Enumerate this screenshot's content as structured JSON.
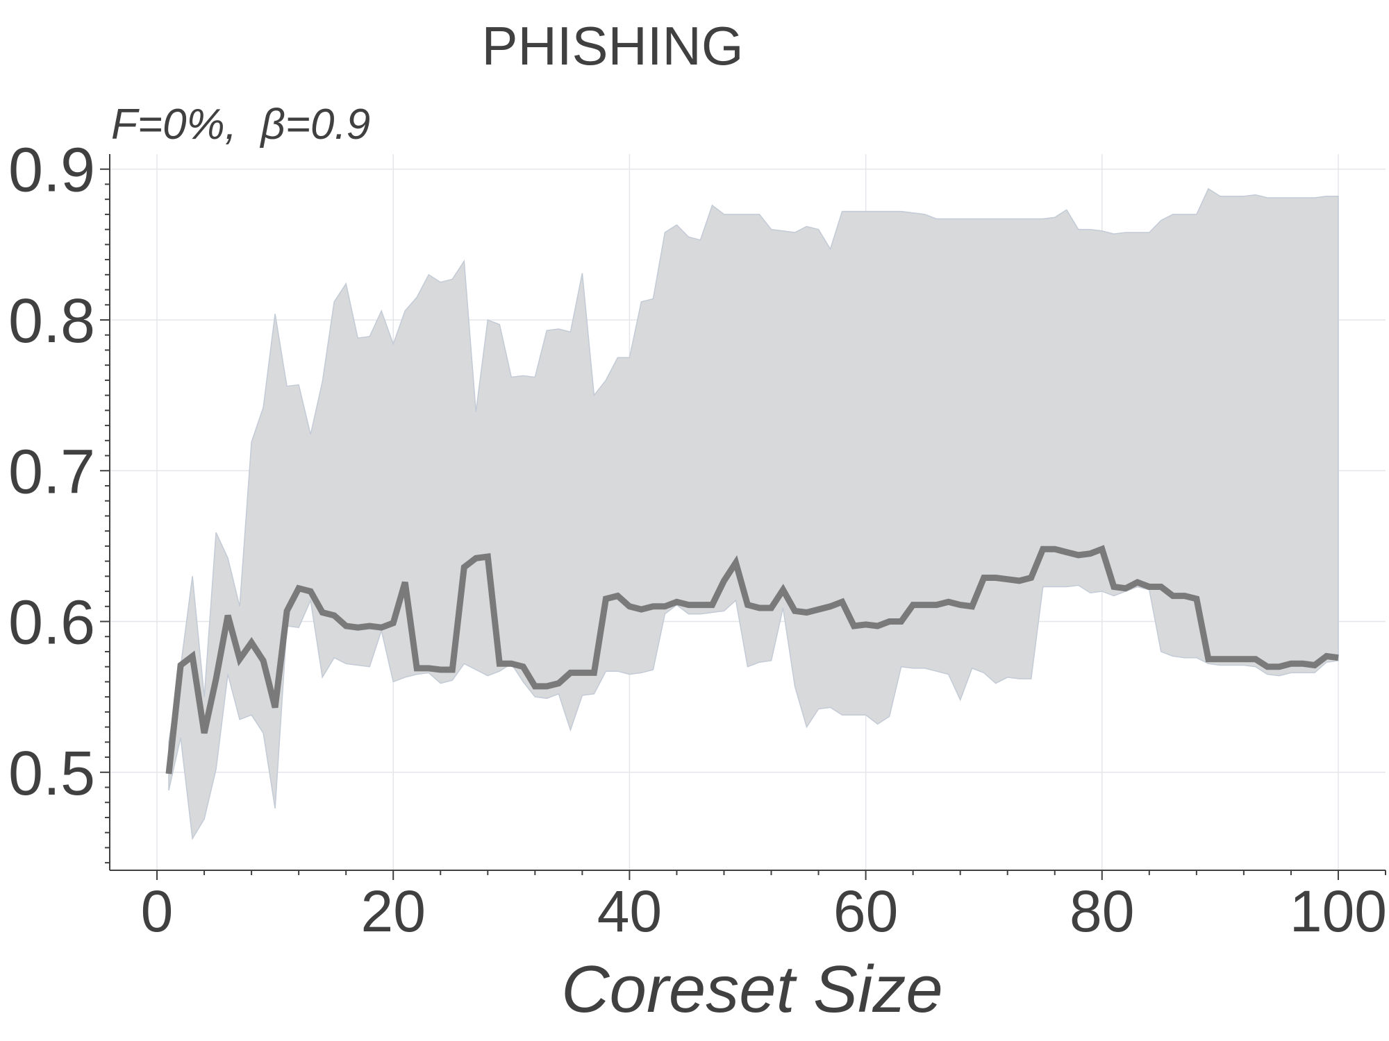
{
  "chart_data": {
    "type": "line",
    "title": "PHISHING",
    "subtitle": "F=0%,  β=0.9",
    "xlabel": "Coreset Size",
    "ylabel": "",
    "xlim": [
      -4,
      104
    ],
    "ylim": [
      0.435,
      0.91
    ],
    "xticks": [
      0,
      20,
      40,
      60,
      80,
      100
    ],
    "xtick_labels": [
      "0",
      "20",
      "40",
      "60",
      "80",
      "100"
    ],
    "yticks": [
      0.5,
      0.6,
      0.7,
      0.8,
      0.9
    ],
    "ytick_labels": [
      "0.5",
      "0.6",
      "0.7",
      "0.8",
      "0.9"
    ],
    "grid": true,
    "colors": {
      "line": "#7a7a7a",
      "band": "#d8d9db",
      "band_edge": "#c3cbd6"
    },
    "x": [
      1,
      2,
      3,
      4,
      5,
      6,
      7,
      8,
      9,
      10,
      11,
      12,
      13,
      14,
      15,
      16,
      17,
      18,
      19,
      20,
      21,
      22,
      23,
      24,
      25,
      26,
      27,
      28,
      29,
      30,
      31,
      32,
      33,
      34,
      35,
      36,
      37,
      38,
      39,
      40,
      41,
      42,
      43,
      44,
      45,
      46,
      47,
      48,
      49,
      50,
      51,
      52,
      53,
      54,
      55,
      56,
      57,
      58,
      59,
      60,
      61,
      62,
      63,
      64,
      65,
      66,
      67,
      68,
      69,
      70,
      71,
      72,
      73,
      74,
      75,
      76,
      77,
      78,
      79,
      80,
      81,
      82,
      83,
      84,
      85,
      86,
      87,
      88,
      89,
      90,
      91,
      92,
      93,
      94,
      95,
      96,
      97,
      98,
      99,
      100
    ],
    "series": [
      {
        "values": [
          0.499,
          0.571,
          0.577,
          0.526,
          0.562,
          0.604,
          0.575,
          0.586,
          0.574,
          0.543,
          0.607,
          0.622,
          0.62,
          0.606,
          0.604,
          0.597,
          0.596,
          0.597,
          0.596,
          0.599,
          0.626,
          0.569,
          0.569,
          0.568,
          0.568,
          0.636,
          0.642,
          0.643,
          0.572,
          0.572,
          0.57,
          0.557,
          0.557,
          0.559,
          0.566,
          0.566,
          0.566,
          0.615,
          0.617,
          0.61,
          0.608,
          0.61,
          0.61,
          0.613,
          0.611,
          0.611,
          0.611,
          0.627,
          0.639,
          0.611,
          0.609,
          0.609,
          0.621,
          0.607,
          0.606,
          0.608,
          0.61,
          0.613,
          0.597,
          0.598,
          0.597,
          0.6,
          0.6,
          0.611,
          0.611,
          0.611,
          0.613,
          0.611,
          0.61,
          0.629,
          0.629,
          0.628,
          0.627,
          0.629,
          0.648,
          0.648,
          0.646,
          0.644,
          0.645,
          0.648,
          0.623,
          0.622,
          0.626,
          0.623,
          0.623,
          0.617,
          0.617,
          0.615,
          0.575,
          0.575,
          0.575,
          0.575,
          0.575,
          0.57,
          0.57,
          0.572,
          0.572,
          0.571,
          0.577,
          0.576
        ],
        "band_upper": [
          0.52,
          0.57,
          0.63,
          0.55,
          0.659,
          0.642,
          0.61,
          0.719,
          0.742,
          0.804,
          0.756,
          0.757,
          0.724,
          0.759,
          0.812,
          0.824,
          0.788,
          0.789,
          0.806,
          0.784,
          0.806,
          0.815,
          0.83,
          0.825,
          0.827,
          0.839,
          0.739,
          0.8,
          0.797,
          0.762,
          0.763,
          0.762,
          0.793,
          0.794,
          0.792,
          0.831,
          0.75,
          0.76,
          0.775,
          0.775,
          0.812,
          0.814,
          0.858,
          0.863,
          0.855,
          0.853,
          0.876,
          0.87,
          0.87,
          0.87,
          0.87,
          0.86,
          0.859,
          0.858,
          0.862,
          0.86,
          0.847,
          0.872,
          0.872,
          0.872,
          0.872,
          0.872,
          0.872,
          0.871,
          0.87,
          0.867,
          0.867,
          0.867,
          0.867,
          0.867,
          0.867,
          0.867,
          0.867,
          0.867,
          0.867,
          0.868,
          0.873,
          0.86,
          0.86,
          0.859,
          0.857,
          0.858,
          0.858,
          0.858,
          0.866,
          0.87,
          0.87,
          0.87,
          0.887,
          0.882,
          0.882,
          0.882,
          0.883,
          0.881,
          0.881,
          0.881,
          0.881,
          0.881,
          0.882,
          0.882
        ],
        "band_lower": [
          0.488,
          0.523,
          0.456,
          0.469,
          0.502,
          0.565,
          0.535,
          0.538,
          0.526,
          0.476,
          0.597,
          0.596,
          0.614,
          0.563,
          0.576,
          0.572,
          0.571,
          0.57,
          0.594,
          0.56,
          0.563,
          0.565,
          0.566,
          0.559,
          0.561,
          0.572,
          0.568,
          0.564,
          0.567,
          0.572,
          0.56,
          0.55,
          0.549,
          0.552,
          0.528,
          0.551,
          0.552,
          0.567,
          0.567,
          0.565,
          0.566,
          0.568,
          0.605,
          0.611,
          0.605,
          0.605,
          0.606,
          0.607,
          0.614,
          0.57,
          0.573,
          0.574,
          0.609,
          0.557,
          0.53,
          0.542,
          0.543,
          0.538,
          0.538,
          0.538,
          0.532,
          0.537,
          0.57,
          0.569,
          0.569,
          0.567,
          0.565,
          0.548,
          0.569,
          0.566,
          0.559,
          0.563,
          0.562,
          0.562,
          0.623,
          0.623,
          0.623,
          0.624,
          0.619,
          0.62,
          0.617,
          0.62,
          0.623,
          0.621,
          0.58,
          0.577,
          0.576,
          0.576,
          0.572,
          0.571,
          0.571,
          0.571,
          0.57,
          0.565,
          0.564,
          0.566,
          0.566,
          0.566,
          0.573,
          0.574
        ]
      }
    ]
  }
}
